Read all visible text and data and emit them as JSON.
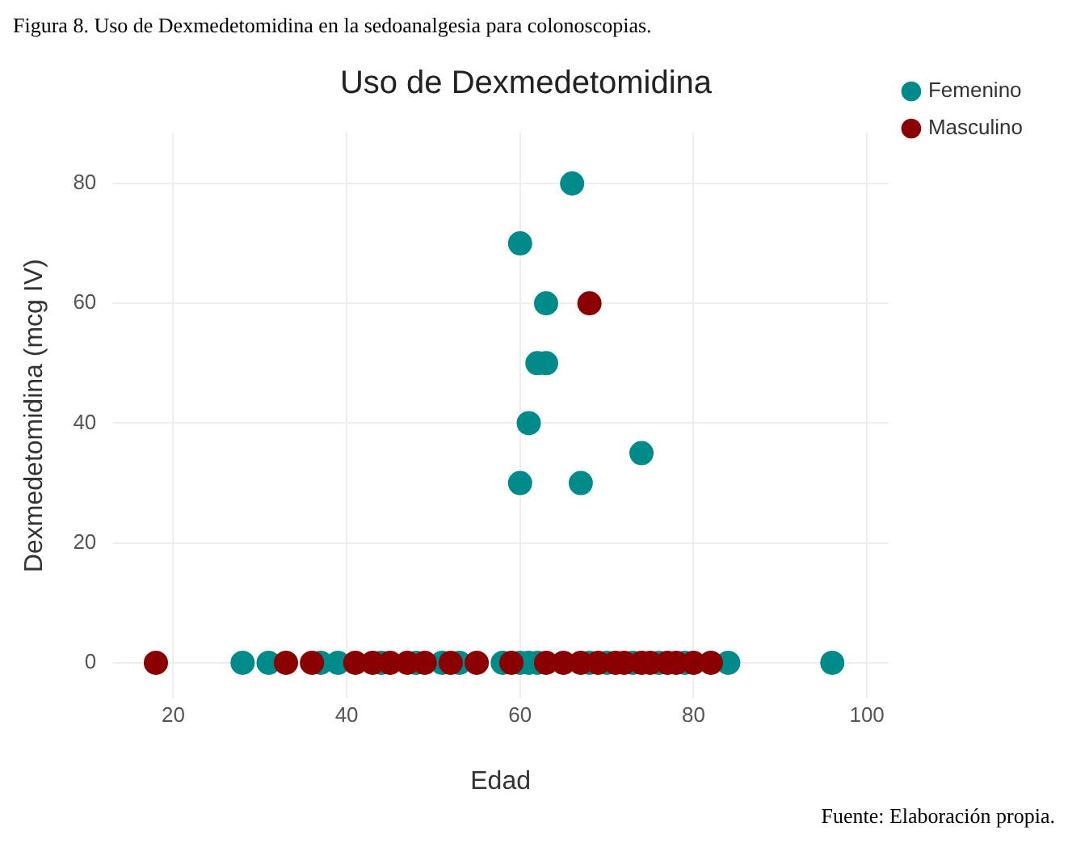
{
  "chart_data": {
    "type": "scatter",
    "title": "Uso de Dexmedetomidina",
    "xlabel": "Edad",
    "ylabel": "Dexmedetomidina (mcg IV)",
    "annotations": [
      "Figura 8. Uso de Dexmedetomidina en la sedoanalgesia para colonoscopias.",
      "Fuente: Elaboración propia."
    ],
    "series": [
      {
        "name": "Femenino",
        "color": "#008b8b",
        "x": [
          66,
          60,
          63,
          62,
          63,
          61,
          60,
          67,
          74,
          28,
          31,
          37,
          39,
          44,
          48,
          51,
          53,
          58,
          60,
          61,
          62,
          68,
          70,
          73,
          76,
          79,
          84,
          96
        ],
        "values": [
          80,
          70,
          60,
          50,
          50,
          40,
          30,
          30,
          35,
          0,
          0,
          0,
          0,
          0,
          0,
          0,
          0,
          0,
          0,
          0,
          0,
          0,
          0,
          0,
          0,
          0,
          0,
          0
        ]
      },
      {
        "name": "Masculino",
        "color": "#8b0000",
        "x": [
          68,
          18,
          33,
          36,
          41,
          43,
          45,
          47,
          49,
          52,
          55,
          59,
          63,
          65,
          67,
          69,
          71,
          72,
          74,
          75,
          77,
          78,
          80,
          82
        ],
        "values": [
          60,
          0,
          0,
          0,
          0,
          0,
          0,
          0,
          0,
          0,
          0,
          0,
          0,
          0,
          0,
          0,
          0,
          0,
          0,
          0,
          0,
          0,
          0,
          0
        ]
      }
    ],
    "xlim": [
      13,
      102.5
    ],
    "xticks": [
      20,
      40,
      60,
      80,
      100
    ],
    "ylim": [
      -6,
      88.5
    ],
    "yticks": [
      0,
      20,
      40,
      60,
      80
    ],
    "grid": true,
    "legend": "top right",
    "marker": "circle"
  }
}
